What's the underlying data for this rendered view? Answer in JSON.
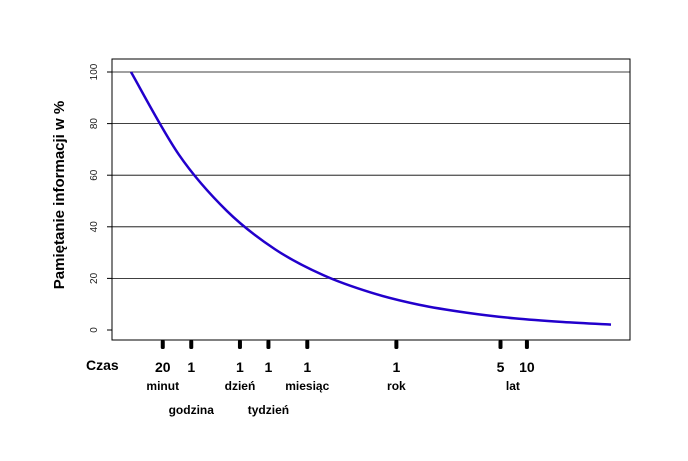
{
  "chart_data": {
    "type": "line",
    "ylabel": "Pamiętanie informacji w %",
    "xlabel": "Czas",
    "ylim": [
      0,
      100
    ],
    "yticks": [
      0,
      20,
      40,
      60,
      80,
      100
    ],
    "grid": "horizontal",
    "series": [
      {
        "color": "#2200cc",
        "x": [
          0,
          0.1,
          0.2,
          0.3,
          0.4,
          0.5,
          0.6,
          0.7,
          0.8,
          0.9,
          1.0
        ],
        "y": [
          100,
          67.9,
          46.1,
          31.3,
          21.3,
          14.5,
          9.8,
          6.7,
          4.5,
          3.1,
          2.1
        ]
      }
    ],
    "x_markers": [
      {
        "num": "20",
        "unit": "minut",
        "pos": 0.098,
        "row": 1
      },
      {
        "num": "1",
        "unit": "godzina",
        "pos": 0.153,
        "row": 2
      },
      {
        "num": "1",
        "unit": "dzień",
        "pos": 0.247,
        "row": 1
      },
      {
        "num": "1",
        "unit": "tydzień",
        "pos": 0.302,
        "row": 2
      },
      {
        "num": "1",
        "unit": "miesiąc",
        "pos": 0.377,
        "row": 1
      },
      {
        "num": "1",
        "unit": "rok",
        "pos": 0.549,
        "row": 1
      },
      {
        "num": "5",
        "unit": "",
        "pos": 0.75,
        "row": 0
      },
      {
        "num": "10",
        "unit": "lat",
        "pos": 0.801,
        "row": 1
      }
    ]
  }
}
